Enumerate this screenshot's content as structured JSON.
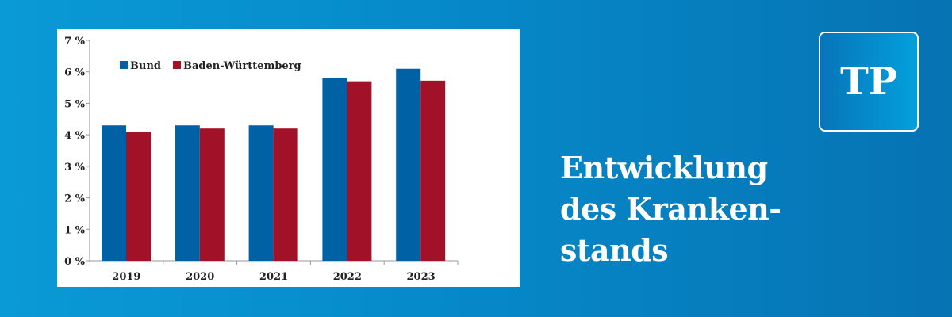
{
  "chart_data": {
    "type": "bar",
    "categories": [
      "2019",
      "2020",
      "2021",
      "2022",
      "2023"
    ],
    "series": [
      {
        "name": "Bund",
        "values": [
          4.3,
          4.3,
          4.3,
          5.8,
          6.1
        ],
        "color": "#0062a4"
      },
      {
        "name": "Baden-Württemberg",
        "values": [
          4.1,
          4.2,
          4.2,
          5.7,
          5.72
        ],
        "color": "#a11228"
      }
    ],
    "ylim": [
      0,
      7
    ],
    "yticks": [
      0,
      1,
      2,
      3,
      4,
      5,
      6,
      7
    ],
    "ytick_labels": [
      "0 %",
      "1 %",
      "2 %",
      "3 %",
      "4 %",
      "5 %",
      "6 %",
      "7 %"
    ],
    "legend_placement": "top-left",
    "title": "",
    "xlabel": "",
    "ylabel": ""
  },
  "headline": {
    "line1": "Entwicklung",
    "line2": "des Kranken-",
    "line3": "stands"
  },
  "logo": {
    "text": "TP"
  }
}
